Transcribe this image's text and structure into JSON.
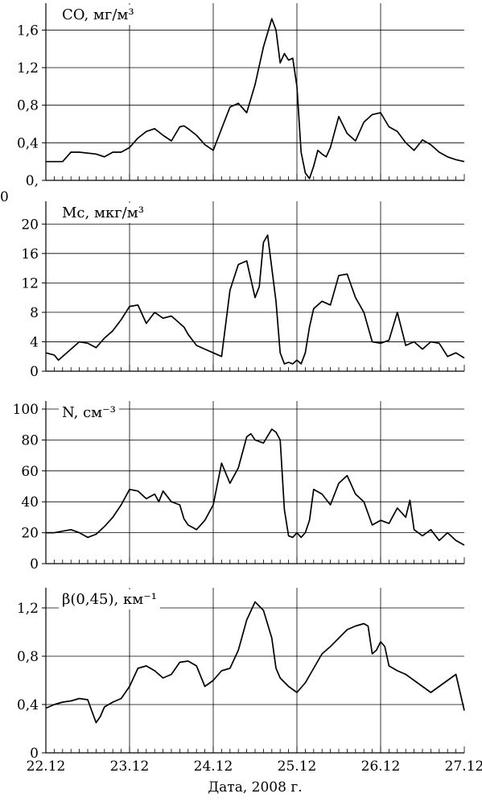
{
  "chart_data": {
    "type": "line",
    "x_axis": {
      "label": "Дата, 2008 г.",
      "ticks": [
        "22.12",
        "23.12",
        "24.12",
        "25.12",
        "26.12",
        "27.12"
      ],
      "range": [
        22,
        27
      ]
    },
    "panels": [
      {
        "id": "co",
        "label": "CO, мг/м³",
        "ylim": [
          0,
          1.8
        ],
        "yticks": [
          0,
          0.4,
          0.8,
          1.2,
          1.6
        ],
        "ytick_labels": [
          "0,",
          "0,4",
          "0,8",
          "1,2",
          "1,6"
        ],
        "extra_label": "0",
        "x": [
          22.0,
          22.2,
          22.3,
          22.4,
          22.6,
          22.7,
          22.8,
          22.9,
          23.0,
          23.1,
          23.2,
          23.3,
          23.4,
          23.5,
          23.6,
          23.65,
          23.7,
          23.8,
          23.9,
          24.0,
          24.1,
          24.2,
          24.3,
          24.4,
          24.5,
          24.6,
          24.7,
          24.75,
          24.8,
          24.85,
          24.9,
          24.95,
          25.0,
          25.05,
          25.1,
          25.15,
          25.2,
          25.25,
          25.3,
          25.35,
          25.4,
          25.5,
          25.6,
          25.7,
          25.8,
          25.9,
          26.0,
          26.1,
          26.2,
          26.3,
          26.4,
          26.5,
          26.6,
          26.7,
          26.8,
          26.9,
          27.0
        ],
        "y": [
          0.2,
          0.2,
          0.3,
          0.3,
          0.28,
          0.25,
          0.3,
          0.3,
          0.35,
          0.45,
          0.52,
          0.55,
          0.48,
          0.42,
          0.57,
          0.58,
          0.55,
          0.48,
          0.38,
          0.32,
          0.55,
          0.78,
          0.82,
          0.72,
          1.02,
          1.42,
          1.72,
          1.6,
          1.25,
          1.35,
          1.28,
          1.3,
          1.0,
          0.3,
          0.08,
          0.02,
          0.15,
          0.32,
          0.28,
          0.25,
          0.35,
          0.68,
          0.5,
          0.42,
          0.62,
          0.7,
          0.72,
          0.57,
          0.52,
          0.4,
          0.32,
          0.43,
          0.38,
          0.3,
          0.25,
          0.22,
          0.2
        ]
      },
      {
        "id": "mc",
        "label": "Mc, мкг/м³",
        "ylim": [
          0,
          22
        ],
        "yticks": [
          0,
          4,
          8,
          12,
          16,
          20
        ],
        "ytick_labels": [
          "0",
          "4",
          "8",
          "12",
          "16",
          "20"
        ],
        "x": [
          22.0,
          22.1,
          22.15,
          22.2,
          22.3,
          22.4,
          22.5,
          22.6,
          22.7,
          22.8,
          22.9,
          23.0,
          23.1,
          23.2,
          23.3,
          23.4,
          23.5,
          23.55,
          23.6,
          23.65,
          23.7,
          23.8,
          23.9,
          24.0,
          24.1,
          24.2,
          24.3,
          24.4,
          24.5,
          24.55,
          24.6,
          24.65,
          24.7,
          24.75,
          24.8,
          24.85,
          24.9,
          24.95,
          25.0,
          25.05,
          25.1,
          25.15,
          25.2,
          25.3,
          25.4,
          25.5,
          25.6,
          25.7,
          25.8,
          25.9,
          26.0,
          26.1,
          26.2,
          26.3,
          26.4,
          26.5,
          26.6,
          26.7,
          26.8,
          26.9,
          27.0
        ],
        "y": [
          2.5,
          2.2,
          1.5,
          2.0,
          3.0,
          4.0,
          3.8,
          3.2,
          4.5,
          5.5,
          7.0,
          8.8,
          9.0,
          6.5,
          8.0,
          7.2,
          7.5,
          7.0,
          6.5,
          6.0,
          5.0,
          3.5,
          3.0,
          2.5,
          2.0,
          11.0,
          14.5,
          15.0,
          10.0,
          11.5,
          17.5,
          18.5,
          14.0,
          9.5,
          2.5,
          1.0,
          1.2,
          1.0,
          1.5,
          1.0,
          2.5,
          6.0,
          8.5,
          9.5,
          9.0,
          13.0,
          13.2,
          10.0,
          8.0,
          4.0,
          3.8,
          4.2,
          8.0,
          3.5,
          4.0,
          3.0,
          4.0,
          3.8,
          2.0,
          2.5,
          1.8
        ]
      },
      {
        "id": "n",
        "label": "N, см⁻³",
        "ylim": [
          0,
          100
        ],
        "yticks": [
          0,
          20,
          40,
          60,
          80,
          100
        ],
        "ytick_labels": [
          "0",
          "20",
          "40",
          "60",
          "80",
          "100"
        ],
        "x": [
          22.0,
          22.1,
          22.2,
          22.3,
          22.4,
          22.5,
          22.6,
          22.7,
          22.8,
          22.9,
          23.0,
          23.1,
          23.2,
          23.3,
          23.35,
          23.4,
          23.5,
          23.6,
          23.65,
          23.7,
          23.8,
          23.9,
          24.0,
          24.1,
          24.2,
          24.3,
          24.4,
          24.45,
          24.5,
          24.6,
          24.7,
          24.75,
          24.8,
          24.85,
          24.9,
          24.95,
          25.0,
          25.05,
          25.1,
          25.15,
          25.2,
          25.3,
          25.4,
          25.5,
          25.6,
          25.7,
          25.8,
          25.9,
          26.0,
          26.1,
          26.2,
          26.3,
          26.35,
          26.4,
          26.5,
          26.6,
          26.7,
          26.8,
          26.9,
          27.0
        ],
        "y": [
          20,
          20,
          21,
          22,
          20,
          17,
          19,
          24,
          30,
          38,
          48,
          47,
          42,
          45,
          40,
          47,
          40,
          38,
          29,
          25,
          22,
          28,
          38,
          65,
          52,
          62,
          82,
          84,
          80,
          78,
          87,
          85,
          80,
          35,
          18,
          17,
          20,
          17,
          20,
          28,
          48,
          45,
          38,
          52,
          57,
          45,
          40,
          25,
          28,
          26,
          36,
          30,
          41,
          22,
          18,
          22,
          15,
          20,
          15,
          12
        ]
      },
      {
        "id": "beta",
        "label": "β(0,45), км⁻¹",
        "ylim": [
          0,
          1.3
        ],
        "yticks": [
          0,
          0.4,
          0.8,
          1.2
        ],
        "ytick_labels": [
          "0",
          "0,4",
          "0,8",
          "1,2"
        ],
        "x": [
          22.0,
          22.1,
          22.2,
          22.3,
          22.4,
          22.5,
          22.6,
          22.65,
          22.7,
          22.8,
          22.9,
          23.0,
          23.1,
          23.2,
          23.3,
          23.4,
          23.5,
          23.6,
          23.7,
          23.8,
          23.9,
          24.0,
          24.1,
          24.2,
          24.3,
          24.4,
          24.5,
          24.6,
          24.7,
          24.75,
          24.8,
          24.9,
          25.0,
          25.1,
          25.2,
          25.3,
          25.4,
          25.5,
          25.6,
          25.7,
          25.8,
          25.85,
          25.9,
          25.95,
          26.0,
          26.05,
          26.1,
          26.15,
          26.2,
          26.3,
          26.4,
          26.5,
          26.6,
          26.7,
          26.8,
          26.9,
          27.0
        ],
        "y": [
          0.37,
          0.4,
          0.42,
          0.43,
          0.45,
          0.44,
          0.25,
          0.3,
          0.38,
          0.42,
          0.45,
          0.55,
          0.7,
          0.72,
          0.68,
          0.62,
          0.65,
          0.75,
          0.76,
          0.72,
          0.55,
          0.6,
          0.68,
          0.7,
          0.85,
          1.1,
          1.25,
          1.18,
          0.95,
          0.7,
          0.62,
          0.55,
          0.5,
          0.58,
          0.7,
          0.82,
          0.88,
          0.95,
          1.02,
          1.05,
          1.07,
          1.05,
          0.82,
          0.85,
          0.92,
          0.88,
          0.72,
          0.7,
          0.68,
          0.65,
          0.6,
          0.55,
          0.5,
          0.55,
          0.6,
          0.65,
          0.35
        ]
      }
    ]
  }
}
